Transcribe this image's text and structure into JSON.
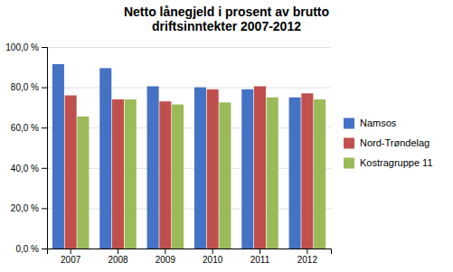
{
  "chart_data": {
    "type": "bar",
    "title": "Netto lånegjeld i prosent av brutto\ndriftsinntekter 2007-2012",
    "categories": [
      "2007",
      "2008",
      "2009",
      "2010",
      "2011",
      "2012"
    ],
    "series": [
      {
        "name": "Namsos",
        "color": "#4472C4",
        "values": [
          91.5,
          89.5,
          80.5,
          80.0,
          79.0,
          75.0
        ]
      },
      {
        "name": "Nord-Trøndelag",
        "color": "#C0504D",
        "values": [
          76.0,
          74.0,
          73.0,
          79.0,
          80.5,
          77.0
        ]
      },
      {
        "name": "Kostragruppe 11",
        "color": "#9BBB59",
        "values": [
          65.5,
          74.0,
          71.5,
          72.5,
          75.0,
          74.0
        ]
      }
    ],
    "ylim": [
      0,
      100
    ],
    "yticks": [
      {
        "value": 0,
        "label": "0,0 %"
      },
      {
        "value": 20,
        "label": "20,0 %"
      },
      {
        "value": 40,
        "label": "40,0 %"
      },
      {
        "value": 60,
        "label": "60,0 %"
      },
      {
        "value": 80,
        "label": "80,0 %"
      },
      {
        "value": 100,
        "label": "100,0 %"
      }
    ],
    "grid": true,
    "legend": "right"
  }
}
